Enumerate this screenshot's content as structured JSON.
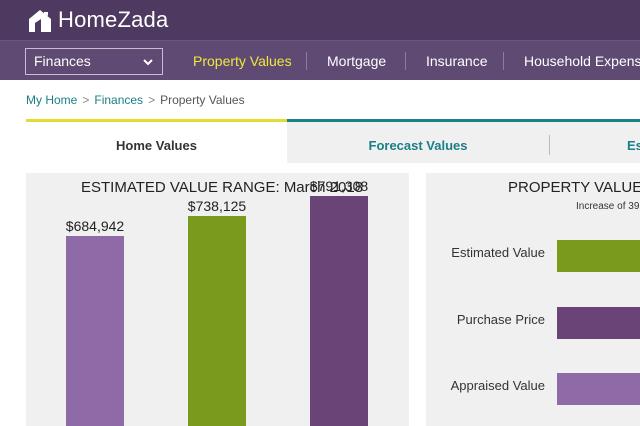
{
  "app": {
    "name": "HomeZada"
  },
  "nav": {
    "section_select": "Finances",
    "items": [
      {
        "label": "Property Values",
        "active": true
      },
      {
        "label": "Mortgage",
        "active": false
      },
      {
        "label": "Insurance",
        "active": false
      },
      {
        "label": "Household Expenses",
        "active": false
      }
    ]
  },
  "breadcrumb": {
    "home": "My Home",
    "section": "Finances",
    "current": "Property Values",
    "separator": ">"
  },
  "tabs": [
    "Home Values",
    "Forecast Values",
    "Es"
  ],
  "colors": {
    "purple_light": "#8e6ba6",
    "green": "#7a9a1e",
    "purple_dark": "#6a4476",
    "accent_yellow": "#e4dc30",
    "teal": "#1a7f86"
  },
  "left_panel": {
    "title": "ESTIMATED VALUE RANGE: March 2018"
  },
  "right_panel": {
    "title": "PROPERTY VALUES",
    "subtitle": "Increase of 39.",
    "rows": [
      "Estimated Value",
      "Purchase Price",
      "Appraised Value"
    ]
  },
  "chart_data": {
    "type": "bar",
    "title": "ESTIMATED VALUE RANGE: March 2018",
    "categories": [
      "",
      "",
      ""
    ],
    "values": [
      684942,
      738125,
      791308
    ],
    "value_labels": [
      "$684,942",
      "$738,125",
      "$791,308"
    ],
    "colors": [
      "#8e6ba6",
      "#7a9a1e",
      "#6a4476"
    ],
    "ylim": [
      0,
      880000
    ],
    "xlabel": "",
    "ylabel": ""
  }
}
